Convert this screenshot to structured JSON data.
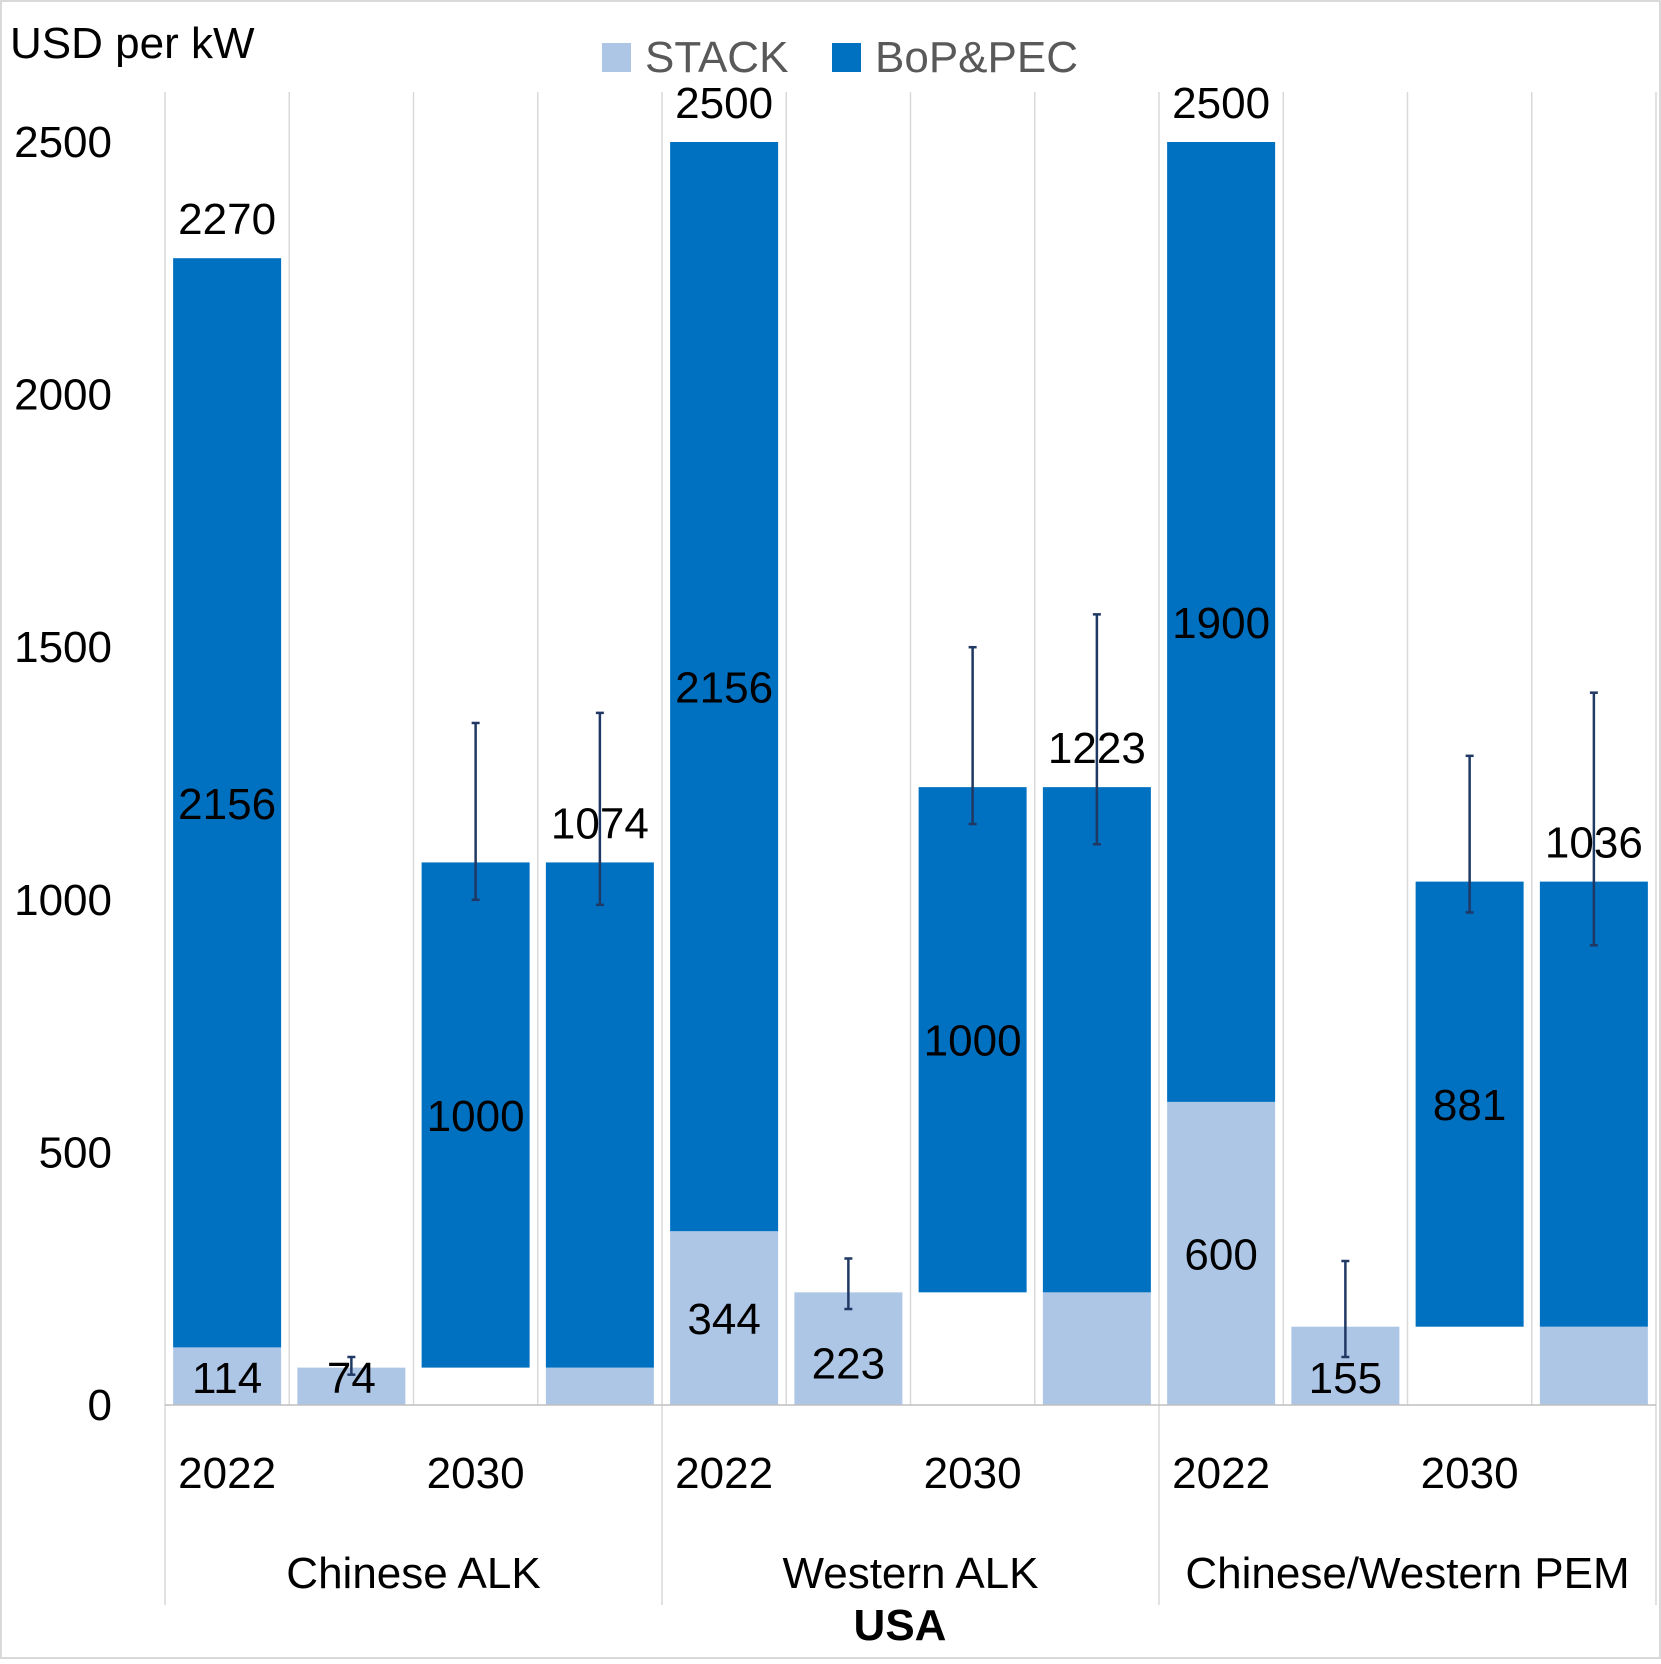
{
  "chart_data": {
    "type": "bar",
    "stacked": true,
    "ylabel": "USD per kW",
    "ylim": [
      0,
      2500
    ],
    "yticks": [
      0,
      500,
      1000,
      1500,
      2000,
      2500
    ],
    "legend": {
      "position": "top-center",
      "items": [
        {
          "name": "STACK",
          "color": "#aec6e6"
        },
        {
          "name": "BoP&PEC",
          "color": "#0070c0"
        }
      ]
    },
    "colors": {
      "stack": "#aec6e6",
      "bop": "#0070c0",
      "error": "#203864"
    },
    "super_category": "USA",
    "groups": [
      {
        "label": "Chinese ALK",
        "years": [
          "2022",
          "2030"
        ]
      },
      {
        "label": "Western ALK",
        "years": [
          "2022",
          "2030"
        ]
      },
      {
        "label": "Chinese/Western PEM",
        "years": [
          "2022",
          "2030"
        ]
      }
    ],
    "bars": [
      {
        "stack_base": 0,
        "stack": 114,
        "bop": 2156,
        "total_label": "2270",
        "stack_label": "114",
        "bop_label": "2156"
      },
      {
        "stack_base": 0,
        "stack": 74,
        "bop": 0,
        "stack_label": "74",
        "error": [
          60,
          95
        ]
      },
      {
        "stack_base": 74,
        "stack": 0,
        "bop": 1000,
        "bop_label": "1000",
        "error": [
          1000,
          1350
        ]
      },
      {
        "stack_base": 0,
        "stack": 74,
        "bop": 1000,
        "total_label": "1074",
        "error": [
          990,
          1370
        ]
      },
      {
        "stack_base": 0,
        "stack": 344,
        "bop": 2156,
        "total_label": "2500",
        "stack_label": "344",
        "bop_label": "2156"
      },
      {
        "stack_base": 0,
        "stack": 223,
        "bop": 0,
        "stack_label": "223",
        "error": [
          190,
          290
        ]
      },
      {
        "stack_base": 223,
        "stack": 0,
        "bop": 1000,
        "bop_label": "1000",
        "error": [
          1150,
          1500
        ]
      },
      {
        "stack_base": 0,
        "stack": 223,
        "bop": 1000,
        "total_label": "1223",
        "error": [
          1110,
          1565
        ]
      },
      {
        "stack_base": 0,
        "stack": 600,
        "bop": 1900,
        "total_label": "2500",
        "stack_label": "600",
        "bop_label": "1900"
      },
      {
        "stack_base": 0,
        "stack": 155,
        "bop": 0,
        "stack_label": "155",
        "error": [
          95,
          285
        ]
      },
      {
        "stack_base": 155,
        "stack": 0,
        "bop": 881,
        "bop_label": "881",
        "error": [
          975,
          1285
        ]
      },
      {
        "stack_base": 0,
        "stack": 155,
        "bop": 881,
        "total_label": "1036",
        "error": [
          910,
          1410
        ]
      }
    ]
  }
}
